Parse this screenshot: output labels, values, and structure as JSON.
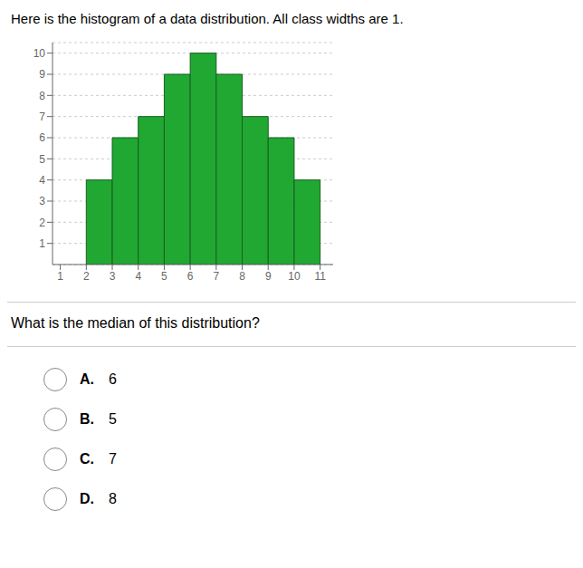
{
  "chart_data": {
    "type": "histogram",
    "title": "Here is the histogram of a data distribution. All class widths are 1.",
    "bins": [
      2,
      3,
      4,
      5,
      6,
      7,
      8,
      9,
      10,
      11
    ],
    "values": [
      4,
      6,
      7,
      9,
      10,
      9,
      7,
      6,
      4
    ],
    "color": "#21a832",
    "xlim": [
      0.7,
      11.5
    ],
    "xticks": [
      1,
      2,
      3,
      4,
      5,
      6,
      7,
      8,
      9,
      10,
      11
    ],
    "ylim": [
      0,
      10.5
    ],
    "yticks": [
      1,
      2,
      3,
      4,
      5,
      6,
      7,
      8,
      9,
      10
    ],
    "grid": true,
    "annotations": [
      "What is the median of this distribution?",
      "A. 6",
      "B. 5",
      "C. 7",
      "D. 8"
    ]
  }
}
